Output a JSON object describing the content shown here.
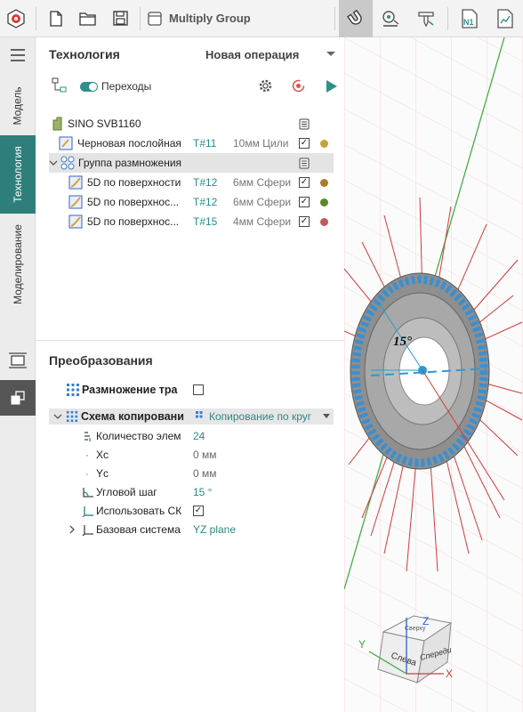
{
  "toolbar": {
    "title": "Multiply Group"
  },
  "vtabs": {
    "model": "Модель",
    "technology": "Технология",
    "modeling": "Моделирование"
  },
  "panel": {
    "header": "Технология",
    "operation": "Новая операция",
    "transitions_label": "Переходы"
  },
  "tree": {
    "machine": "SINO SVB1160",
    "rows": [
      {
        "name": "Черновая послойная",
        "tool": "T#11",
        "desc": "10мм Цили",
        "color": "#c7a23a"
      },
      {
        "name": "Группа размножения",
        "tool": "",
        "desc": "",
        "color": ""
      },
      {
        "name": "5D по поверхности",
        "tool": "T#12",
        "desc": "6мм Сфери",
        "color": "#b07a2a"
      },
      {
        "name": "5D по поверхнос...",
        "tool": "T#12",
        "desc": "6мм Сфери",
        "color": "#5a8a2a"
      },
      {
        "name": "5D по поверхнос...",
        "tool": "T#15",
        "desc": "4мм Сфери",
        "color": "#c05a5a"
      }
    ]
  },
  "transform": {
    "header": "Преобразования",
    "multiply_label": "Размножение тра",
    "scheme_label": "Схема копировани",
    "scheme_value": "Копирование по круг",
    "props": [
      {
        "label": "Количество элем",
        "value": "24"
      },
      {
        "label": "Xc",
        "value": "0 мм"
      },
      {
        "label": "Yc",
        "value": "0 мм"
      },
      {
        "label": "Угловой шаг",
        "value": "15 °"
      },
      {
        "label": "Использовать СК",
        "value": ""
      },
      {
        "label": "Базовая система",
        "value": "YZ plane"
      }
    ]
  },
  "viewport": {
    "angle_label": "15°",
    "cube_left": "Слева",
    "cube_front": "Спереди",
    "cube_top": "Сверху",
    "axis_x": "X",
    "axis_y": "Y",
    "axis_z": "Z"
  }
}
